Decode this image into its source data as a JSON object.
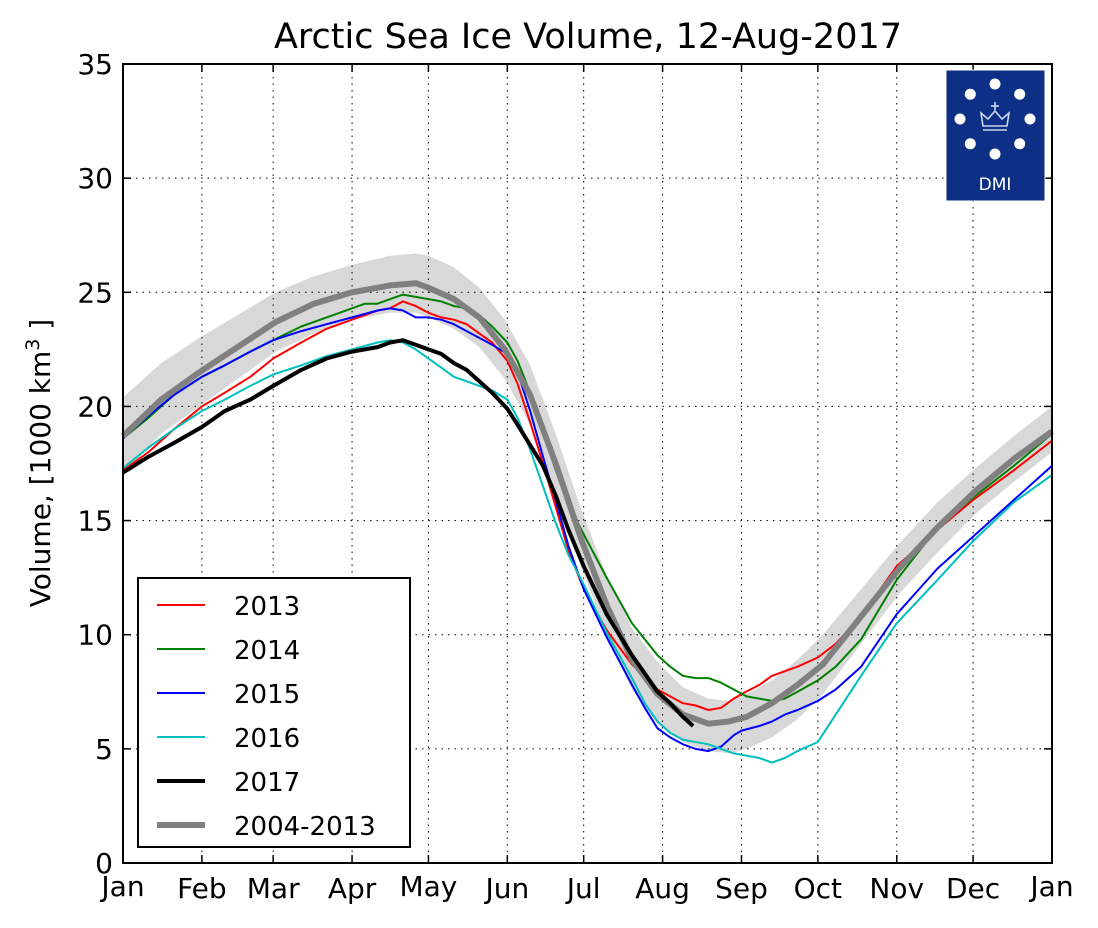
{
  "chart_data": {
    "type": "line",
    "title": "Arctic Sea Ice Volume, 12-Aug-2017",
    "ylabel_main": "Volume, [1000 km",
    "ylabel_sup": "3",
    "ylabel_end": " ]",
    "xlabel": "",
    "ylim": [
      0,
      35
    ],
    "xlim": [
      0,
      365
    ],
    "yticks": [
      0,
      5,
      10,
      15,
      20,
      25,
      30,
      35
    ],
    "xtick_labels": [
      "Jan",
      "Feb",
      "Mar",
      "Apr",
      "May",
      "Jun",
      "Jul",
      "Aug",
      "Sep",
      "Oct",
      "Nov",
      "Dec",
      "Jan"
    ],
    "xtick_days": [
      0,
      31,
      59,
      90,
      120,
      151,
      181,
      212,
      243,
      273,
      304,
      334,
      365
    ],
    "grid": true,
    "legend_position": "lower-left",
    "logo_text": "DMI",
    "band": {
      "x": [
        0,
        15,
        30,
        45,
        60,
        75,
        90,
        105,
        115,
        120,
        130,
        140,
        150,
        160,
        170,
        180,
        190,
        200,
        210,
        220,
        230,
        238,
        245,
        255,
        265,
        275,
        290,
        305,
        320,
        335,
        350,
        365
      ],
      "upper": [
        20.4,
        21.9,
        23.0,
        24.0,
        25.0,
        25.7,
        26.2,
        26.6,
        26.7,
        26.6,
        26.1,
        25.2,
        23.8,
        21.8,
        18.8,
        15.5,
        12.6,
        10.3,
        8.8,
        7.7,
        7.2,
        7.1,
        7.4,
        8.0,
        8.9,
        10.0,
        12.0,
        14.0,
        15.8,
        17.3,
        18.7,
        20.0
      ],
      "lower": [
        17.0,
        18.8,
        20.0,
        21.2,
        22.4,
        23.2,
        23.8,
        24.1,
        24.1,
        23.9,
        23.4,
        22.6,
        21.2,
        19.2,
        16.3,
        13.0,
        10.0,
        7.6,
        6.1,
        5.3,
        4.9,
        4.8,
        5.0,
        5.5,
        6.3,
        7.4,
        9.6,
        11.8,
        13.6,
        15.3,
        16.7,
        18.0
      ]
    },
    "series": [
      {
        "name": "2013",
        "color": "#ff0000",
        "width": 2,
        "x": [
          0,
          10,
          20,
          31,
          40,
          50,
          59,
          70,
          80,
          90,
          100,
          105,
          110,
          115,
          120,
          125,
          130,
          135,
          140,
          145,
          151,
          155,
          160,
          165,
          170,
          175,
          181,
          190,
          200,
          210,
          215,
          220,
          225,
          230,
          235,
          240,
          243,
          250,
          255,
          260,
          265,
          273,
          280,
          290,
          304,
          320,
          334,
          350,
          365
        ],
        "y": [
          17.2,
          18.0,
          19.0,
          20.0,
          20.6,
          21.3,
          22.1,
          22.8,
          23.4,
          23.8,
          24.2,
          24.3,
          24.6,
          24.4,
          24.1,
          23.9,
          23.8,
          23.6,
          23.2,
          22.8,
          22.0,
          21.0,
          19.3,
          17.5,
          15.6,
          13.7,
          12.0,
          10.2,
          8.7,
          7.6,
          7.3,
          7.0,
          6.9,
          6.7,
          6.8,
          7.2,
          7.4,
          7.8,
          8.2,
          8.4,
          8.6,
          9.0,
          9.6,
          10.8,
          13.0,
          14.6,
          15.9,
          17.2,
          18.5
        ]
      },
      {
        "name": "2014",
        "color": "#008000",
        "width": 2,
        "x": [
          0,
          10,
          20,
          31,
          40,
          50,
          59,
          70,
          80,
          90,
          95,
          100,
          105,
          110,
          115,
          120,
          125,
          130,
          135,
          140,
          145,
          151,
          155,
          160,
          165,
          170,
          175,
          181,
          190,
          200,
          210,
          215,
          220,
          225,
          230,
          235,
          240,
          245,
          250,
          255,
          260,
          265,
          273,
          280,
          290,
          304,
          320,
          334,
          350,
          365
        ],
        "y": [
          18.6,
          19.5,
          20.5,
          21.3,
          21.8,
          22.4,
          22.9,
          23.5,
          23.9,
          24.3,
          24.5,
          24.5,
          24.7,
          24.9,
          24.8,
          24.7,
          24.6,
          24.4,
          24.3,
          24.0,
          23.5,
          22.8,
          22.0,
          20.6,
          18.9,
          17.2,
          15.7,
          14.4,
          12.5,
          10.5,
          9.1,
          8.6,
          8.2,
          8.1,
          8.1,
          7.9,
          7.6,
          7.3,
          7.2,
          7.1,
          7.2,
          7.5,
          8.0,
          8.6,
          9.8,
          12.4,
          14.7,
          16.0,
          17.4,
          18.8
        ]
      },
      {
        "name": "2015",
        "color": "#0000ff",
        "width": 2,
        "x": [
          0,
          10,
          20,
          31,
          40,
          50,
          59,
          70,
          80,
          90,
          100,
          105,
          110,
          115,
          120,
          125,
          130,
          135,
          140,
          145,
          151,
          155,
          160,
          165,
          170,
          175,
          181,
          190,
          200,
          205,
          210,
          215,
          220,
          225,
          230,
          235,
          240,
          243,
          250,
          255,
          260,
          265,
          273,
          280,
          290,
          304,
          320,
          334,
          350,
          365
        ],
        "y": [
          18.6,
          19.6,
          20.5,
          21.3,
          21.8,
          22.4,
          22.9,
          23.3,
          23.6,
          23.9,
          24.2,
          24.3,
          24.2,
          23.9,
          23.9,
          23.8,
          23.6,
          23.3,
          23.0,
          22.7,
          22.3,
          21.5,
          19.8,
          17.8,
          15.9,
          13.9,
          12.0,
          9.9,
          7.8,
          6.8,
          5.9,
          5.5,
          5.2,
          5.0,
          4.9,
          5.1,
          5.6,
          5.8,
          6.0,
          6.2,
          6.5,
          6.7,
          7.1,
          7.6,
          8.6,
          10.9,
          12.9,
          14.3,
          15.9,
          17.4
        ]
      },
      {
        "name": "2016",
        "color": "#00bfbf",
        "width": 2,
        "x": [
          0,
          10,
          20,
          31,
          40,
          50,
          59,
          70,
          80,
          90,
          100,
          105,
          110,
          115,
          120,
          125,
          130,
          135,
          140,
          145,
          151,
          155,
          160,
          165,
          170,
          175,
          181,
          190,
          200,
          205,
          210,
          215,
          220,
          225,
          230,
          235,
          240,
          245,
          250,
          255,
          260,
          265,
          273,
          280,
          290,
          304,
          320,
          334,
          350,
          365
        ],
        "y": [
          17.3,
          18.2,
          19.0,
          19.8,
          20.3,
          20.9,
          21.4,
          21.8,
          22.2,
          22.5,
          22.8,
          22.9,
          22.8,
          22.5,
          22.1,
          21.7,
          21.3,
          21.1,
          20.9,
          20.7,
          20.3,
          19.5,
          18.1,
          16.5,
          14.9,
          13.5,
          12.2,
          10.1,
          8.1,
          7.0,
          6.2,
          5.7,
          5.4,
          5.3,
          5.2,
          5.0,
          4.8,
          4.7,
          4.6,
          4.4,
          4.6,
          4.9,
          5.3,
          6.5,
          8.2,
          10.5,
          12.4,
          14.1,
          15.8,
          17.0
        ]
      },
      {
        "name": "2017",
        "color": "#000000",
        "width": 4,
        "x": [
          0,
          10,
          20,
          31,
          40,
          50,
          59,
          70,
          80,
          90,
          100,
          105,
          110,
          115,
          120,
          125,
          130,
          135,
          140,
          145,
          151,
          155,
          160,
          165,
          170,
          175,
          181,
          190,
          200,
          205,
          210,
          215,
          220,
          224
        ],
        "y": [
          17.1,
          17.8,
          18.4,
          19.1,
          19.8,
          20.3,
          20.9,
          21.6,
          22.1,
          22.4,
          22.6,
          22.8,
          22.9,
          22.7,
          22.5,
          22.3,
          21.9,
          21.6,
          21.1,
          20.6,
          19.9,
          19.2,
          18.3,
          17.4,
          16.1,
          14.6,
          13.0,
          10.9,
          9.1,
          8.3,
          7.5,
          7.0,
          6.4,
          6.0
        ]
      },
      {
        "name": "2004-2013",
        "color": "#808080",
        "width": 6,
        "x": [
          0,
          15,
          30,
          45,
          60,
          75,
          90,
          105,
          115,
          120,
          130,
          140,
          150,
          160,
          170,
          180,
          190,
          200,
          210,
          220,
          230,
          238,
          245,
          255,
          265,
          275,
          290,
          305,
          320,
          335,
          350,
          365
        ],
        "y": [
          18.7,
          20.3,
          21.5,
          22.6,
          23.7,
          24.5,
          25.0,
          25.3,
          25.4,
          25.2,
          24.7,
          23.9,
          22.5,
          20.5,
          17.5,
          14.2,
          11.3,
          8.9,
          7.4,
          6.5,
          6.1,
          6.2,
          6.4,
          7.0,
          7.8,
          8.7,
          10.8,
          12.9,
          14.7,
          16.3,
          17.7,
          18.9
        ]
      }
    ]
  }
}
